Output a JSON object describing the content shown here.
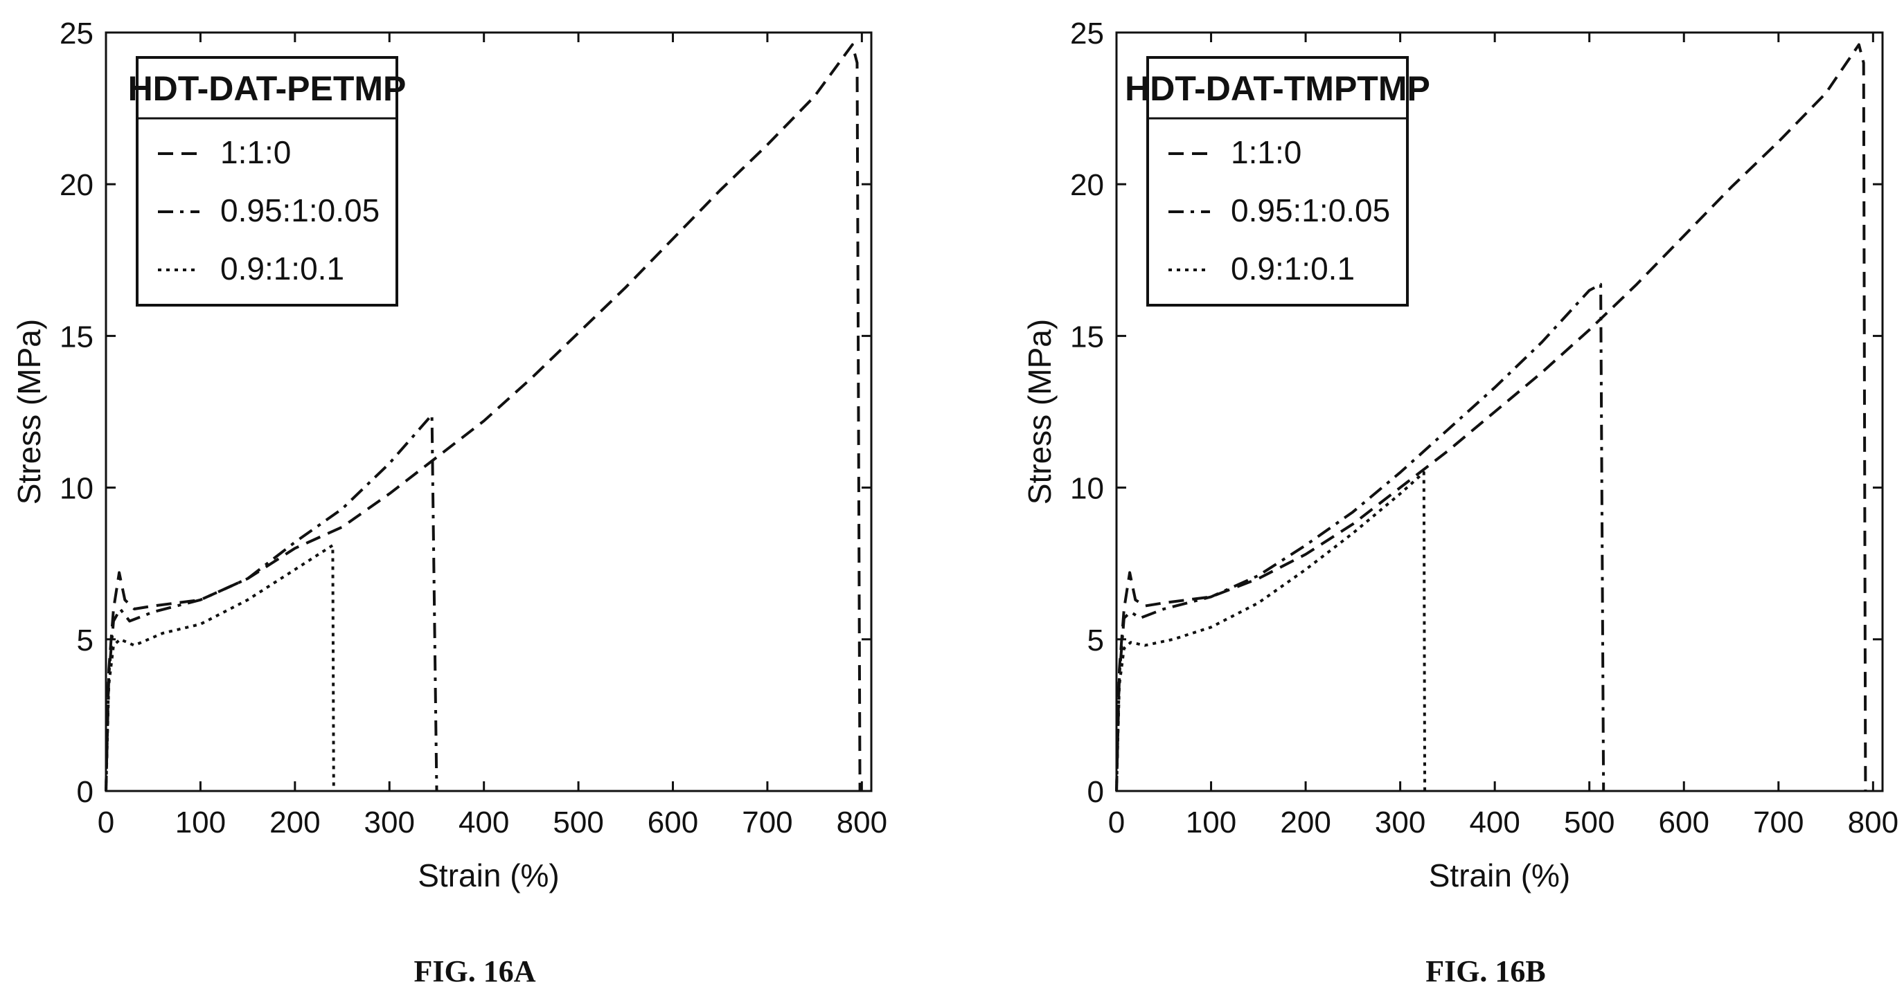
{
  "chart_data": [
    {
      "type": "line",
      "caption": "FIG. 16A",
      "xlabel": "Strain (%)",
      "ylabel": "Stress (MPa)",
      "xlim": [
        0,
        810
      ],
      "ylim": [
        0,
        25
      ],
      "xticks": [
        0,
        100,
        200,
        300,
        400,
        500,
        600,
        700,
        800
      ],
      "yticks": [
        0,
        5,
        10,
        15,
        20,
        25
      ],
      "grid": false,
      "legend_title": "HDT-DAT-PETMP",
      "legend_position": "top-left",
      "series": [
        {
          "name": "1:1:0",
          "style": "dashed",
          "x": [
            0,
            3,
            8,
            14,
            20,
            30,
            50,
            100,
            150,
            200,
            250,
            300,
            350,
            400,
            450,
            500,
            550,
            600,
            650,
            700,
            750,
            790,
            795,
            798
          ],
          "y": [
            0,
            4.0,
            6.0,
            7.2,
            6.3,
            6.0,
            6.1,
            6.3,
            7.0,
            8.0,
            8.7,
            9.8,
            11.0,
            12.2,
            13.6,
            15.1,
            16.6,
            18.2,
            19.8,
            21.3,
            22.9,
            24.6,
            24.0,
            0
          ]
        },
        {
          "name": "0.95:1:0.05",
          "style": "dashdot",
          "x": [
            0,
            3,
            8,
            15,
            25,
            50,
            100,
            150,
            200,
            250,
            300,
            345,
            350
          ],
          "y": [
            0,
            3.8,
            5.6,
            6.0,
            5.6,
            5.9,
            6.3,
            7.0,
            8.2,
            9.3,
            10.8,
            12.4,
            0
          ]
        },
        {
          "name": "0.9:1:0.1",
          "style": "dotted",
          "x": [
            0,
            3,
            8,
            15,
            30,
            60,
            100,
            150,
            200,
            240,
            241
          ],
          "y": [
            0,
            3.5,
            4.8,
            5.0,
            4.8,
            5.2,
            5.5,
            6.3,
            7.3,
            8.1,
            0
          ]
        }
      ]
    },
    {
      "type": "line",
      "caption": "FIG. 16B",
      "xlabel": "Strain (%)",
      "ylabel": "Stress (MPa)",
      "xlim": [
        0,
        810
      ],
      "ylim": [
        0,
        25
      ],
      "xticks": [
        0,
        100,
        200,
        300,
        400,
        500,
        600,
        700,
        800
      ],
      "yticks": [
        0,
        5,
        10,
        15,
        20,
        25
      ],
      "grid": false,
      "legend_title": "HDT-DAT-TMPTMP",
      "legend_position": "top-left",
      "series": [
        {
          "name": "1:1:0",
          "style": "dashed",
          "x": [
            0,
            3,
            8,
            14,
            20,
            30,
            50,
            100,
            150,
            200,
            250,
            300,
            350,
            400,
            450,
            500,
            550,
            600,
            650,
            700,
            750,
            785,
            790,
            792
          ],
          "y": [
            0,
            4.0,
            6.0,
            7.2,
            6.3,
            6.1,
            6.2,
            6.4,
            7.0,
            7.8,
            8.8,
            10.0,
            11.2,
            12.5,
            13.8,
            15.2,
            16.7,
            18.3,
            19.9,
            21.4,
            23.0,
            24.6,
            24.0,
            0
          ]
        },
        {
          "name": "0.95:1:0.05",
          "style": "dashdot",
          "x": [
            0,
            3,
            8,
            15,
            25,
            50,
            100,
            150,
            200,
            250,
            300,
            350,
            400,
            450,
            500,
            512,
            515
          ],
          "y": [
            0,
            3.8,
            5.7,
            5.9,
            5.7,
            6.0,
            6.4,
            7.1,
            8.1,
            9.2,
            10.5,
            11.9,
            13.3,
            14.8,
            16.5,
            16.7,
            0
          ]
        },
        {
          "name": "0.9:1:0.1",
          "style": "dotted",
          "x": [
            0,
            3,
            8,
            15,
            30,
            60,
            100,
            150,
            200,
            250,
            300,
            325,
            326
          ],
          "y": [
            0,
            3.5,
            4.7,
            4.9,
            4.8,
            5.0,
            5.4,
            6.2,
            7.3,
            8.5,
            9.8,
            10.5,
            0
          ]
        }
      ]
    }
  ],
  "styles": {
    "ink": "#111111",
    "background": "#ffffff"
  }
}
